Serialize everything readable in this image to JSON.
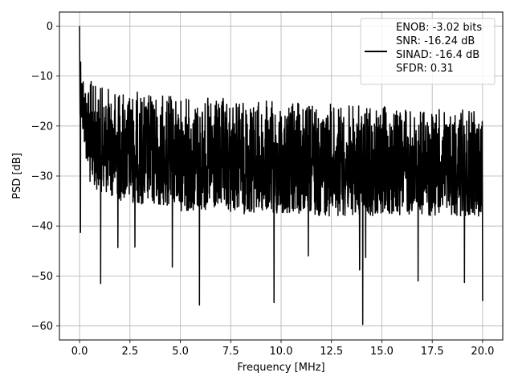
{
  "chart_data": {
    "type": "line",
    "xlabel": "Frequency [MHz]",
    "ylabel": "PSD [dB]",
    "xlim": [
      -1.0,
      21.0
    ],
    "ylim": [
      -62.8,
      2.8
    ],
    "x_ticks": [
      0.0,
      2.5,
      5.0,
      7.5,
      10.0,
      12.5,
      15.0,
      17.5,
      20.0
    ],
    "x_tick_labels": [
      "0.0",
      "2.5",
      "5.0",
      "7.5",
      "10.0",
      "12.5",
      "15.0",
      "17.5",
      "20.0"
    ],
    "y_ticks": [
      0,
      -10,
      -20,
      -30,
      -40,
      -50,
      -60
    ],
    "y_tick_labels": [
      "0",
      "−10",
      "−20",
      "−30",
      "−40",
      "−50",
      "−60"
    ],
    "grid": true,
    "legend_placement": "top-right",
    "series": [
      {
        "color": "#000000",
        "legend_lines": [
          "ENOB: -3.02 bits",
          "SNR: -16.24 dB",
          "SINAD: -16.4 dB",
          "SFDR: 0.31"
        ],
        "x_range": [
          0.0,
          20.0
        ],
        "envelope": {
          "upper": [
            [
              0.0,
              0.0
            ],
            [
              0.05,
              -3
            ],
            [
              0.1,
              -8
            ],
            [
              0.3,
              -10
            ],
            [
              1.0,
              -12
            ],
            [
              3.0,
              -13
            ],
            [
              5.0,
              -14
            ],
            [
              10.0,
              -15
            ],
            [
              15.0,
              -16
            ],
            [
              20.0,
              -17
            ]
          ],
          "lower": [
            [
              0.0,
              -17
            ],
            [
              0.5,
              -32
            ],
            [
              2.0,
              -35
            ],
            [
              5.0,
              -37
            ],
            [
              10.0,
              -38
            ],
            [
              15.0,
              -38
            ],
            [
              20.0,
              -38
            ]
          ]
        },
        "spikes": [
          {
            "x": 0.0,
            "y": 0.0
          },
          {
            "x": 0.05,
            "y": -41.3
          },
          {
            "x": 1.05,
            "y": -51.5
          },
          {
            "x": 4.6,
            "y": -48.2
          },
          {
            "x": 5.95,
            "y": -55.8
          },
          {
            "x": 9.65,
            "y": -55.3
          },
          {
            "x": 14.05,
            "y": -59.7
          },
          {
            "x": 13.9,
            "y": -48.8
          },
          {
            "x": 16.8,
            "y": -51.0
          },
          {
            "x": 19.1,
            "y": -51.3
          },
          {
            "x": 20.0,
            "y": -55.0
          },
          {
            "x": 1.9,
            "y": -44.3
          },
          {
            "x": 2.75,
            "y": -44.2
          },
          {
            "x": 11.35,
            "y": -46.0
          },
          {
            "x": 14.2,
            "y": -46.3
          }
        ]
      }
    ]
  }
}
